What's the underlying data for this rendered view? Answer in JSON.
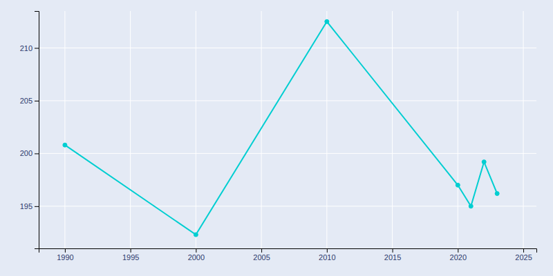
{
  "chart_data": {
    "type": "line",
    "x": [
      1990,
      2000,
      2010,
      2020,
      2021,
      2022,
      2023
    ],
    "values": [
      200.8,
      192.3,
      212.5,
      197.0,
      195.0,
      199.2,
      196.2
    ],
    "color": "#00CED1",
    "marker": "circle",
    "xlim": [
      1988,
      2026
    ],
    "ylim": [
      191.0,
      213.5
    ],
    "xticks": [
      1990,
      1995,
      2000,
      2005,
      2010,
      2015,
      2020,
      2025
    ],
    "yticks": [
      195,
      200,
      205,
      210
    ],
    "grid": true
  }
}
